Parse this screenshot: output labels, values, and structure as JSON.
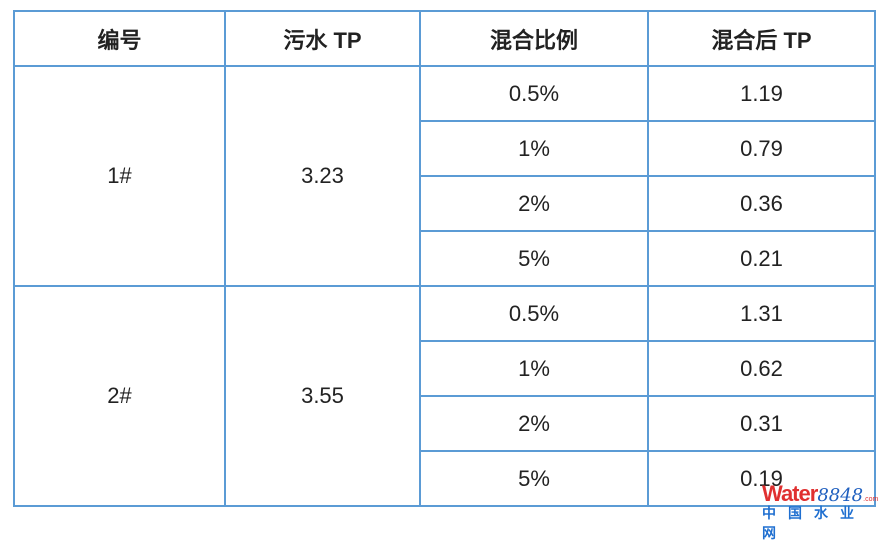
{
  "headers": [
    "编号",
    "污水 TP",
    "混合比例",
    "混合后 TP"
  ],
  "groups": [
    {
      "id": "1#",
      "tp": "3.23",
      "rows": [
        {
          "ratio": "0.5%",
          "mixed": "1.19"
        },
        {
          "ratio": "1%",
          "mixed": "0.79"
        },
        {
          "ratio": "2%",
          "mixed": "0.36"
        },
        {
          "ratio": "5%",
          "mixed": "0.21"
        }
      ]
    },
    {
      "id": "2#",
      "tp": "3.55",
      "rows": [
        {
          "ratio": "0.5%",
          "mixed": "1.31"
        },
        {
          "ratio": "1%",
          "mixed": "0.62"
        },
        {
          "ratio": "2%",
          "mixed": "0.31"
        },
        {
          "ratio": "5%",
          "mixed": "0.19"
        }
      ]
    }
  ],
  "watermark": {
    "brand": "Water",
    "num": "8848",
    "com": ".com",
    "sub": "中国水业网"
  },
  "colors": {
    "border": "#5b9bd5"
  }
}
